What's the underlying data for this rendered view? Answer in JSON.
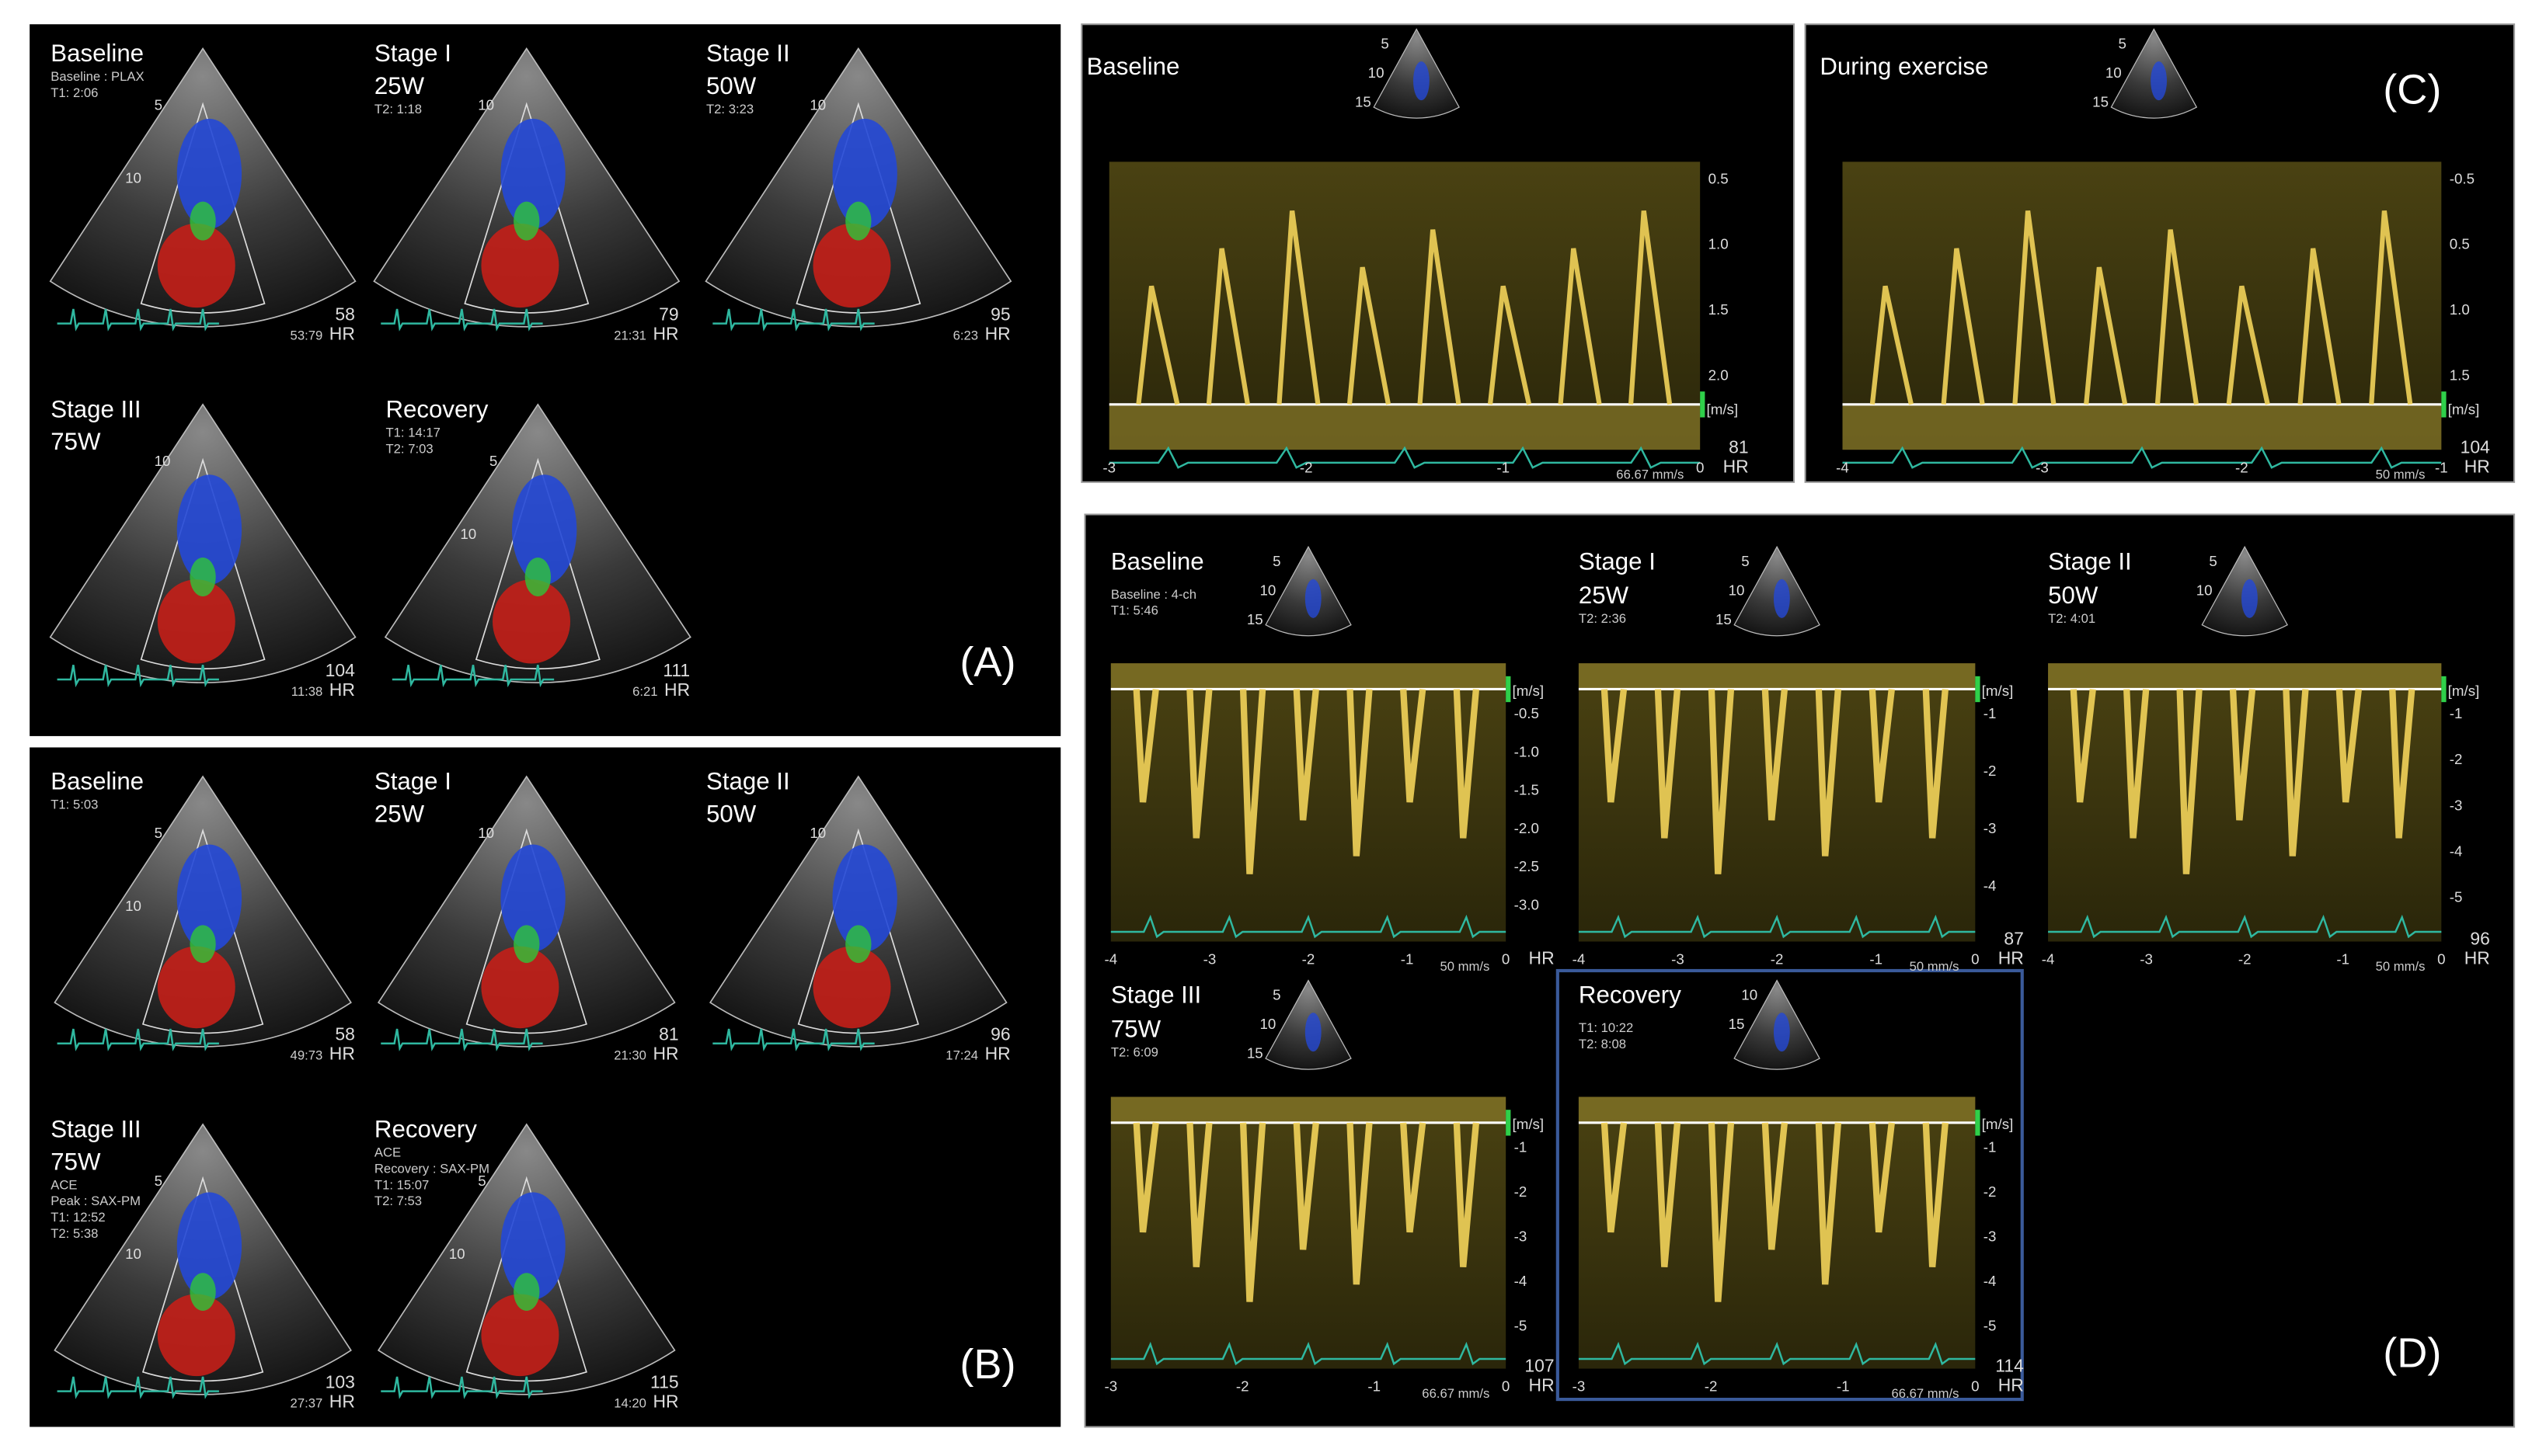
{
  "panel_a": {
    "letter": "(A)",
    "hr_unit": "HR",
    "views": [
      {
        "title": "Baseline",
        "notes": [
          "Baseline : PLAX",
          "T1: 2:06"
        ],
        "depth": [
          "5",
          "10"
        ],
        "hr": "58",
        "time": "53:79"
      },
      {
        "title": "Stage I",
        "subtitle": "25W",
        "notes": [
          "T2: 1:18"
        ],
        "depth": [
          "10"
        ],
        "hr": "79",
        "time": "21:31"
      },
      {
        "title": "Stage II",
        "subtitle": "50W",
        "notes": [
          "T2: 3:23"
        ],
        "depth": [
          "10"
        ],
        "hr": "95",
        "time": "6:23"
      },
      {
        "title": "Stage III",
        "subtitle": "75W",
        "notes": [],
        "depth": [
          "10"
        ],
        "hr": "104",
        "time": "11:38"
      },
      {
        "title": "Recovery",
        "notes": [
          "T1: 14:17",
          "T2: 7:03"
        ],
        "depth": [
          "5",
          "10"
        ],
        "hr": "111",
        "time": "6:21"
      }
    ]
  },
  "panel_b": {
    "letter": "(B)",
    "hr_unit": "HR",
    "views": [
      {
        "title": "Baseline",
        "notes": [
          "T1: 5:03"
        ],
        "depth": [
          "5",
          "10"
        ],
        "hr": "58",
        "time": "49:73"
      },
      {
        "title": "Stage I",
        "subtitle": "25W",
        "notes": [],
        "depth": [
          "10"
        ],
        "hr": "81",
        "time": "21:30"
      },
      {
        "title": "Stage II",
        "subtitle": "50W",
        "notes": [],
        "depth": [
          "10"
        ],
        "hr": "96",
        "time": "17:24"
      },
      {
        "title": "Stage III",
        "subtitle": "75W",
        "notes": [
          "ACE",
          "Peak : SAX-PM",
          "T1: 12:52",
          "T2: 5:38"
        ],
        "depth": [
          "5",
          "10"
        ],
        "hr": "103",
        "time": "27:37"
      },
      {
        "title": "Recovery",
        "notes": [
          "ACE",
          "Recovery : SAX-PM",
          "T1: 15:07",
          "T2: 7:53"
        ],
        "depth": [
          "5",
          "10"
        ],
        "hr": "115",
        "time": "14:20"
      }
    ]
  },
  "panel_c": {
    "letter": "(C)",
    "hr_unit": "HR",
    "unit": "[m/s]",
    "views": [
      {
        "title": "Baseline",
        "depth": [
          "5",
          "10",
          "15"
        ],
        "yticks": [
          "2.0",
          "1.5",
          "1.0",
          "0.5"
        ],
        "xticks": [
          "-3",
          "-2",
          "-1",
          "0"
        ],
        "speed": "66.67 mm/s",
        "hr": "81"
      },
      {
        "title": "During exercise",
        "depth": [
          "5",
          "10",
          "15"
        ],
        "yticks": [
          "1.5",
          "1.0",
          "0.5",
          "-0.5"
        ],
        "xticks": [
          "-4",
          "-3",
          "-2",
          "-1"
        ],
        "speed": "50 mm/s",
        "hr": "104"
      }
    ]
  },
  "panel_d": {
    "letter": "(D)",
    "hr_unit": "HR",
    "unit": "[m/s]",
    "views": [
      {
        "title": "Baseline",
        "notes": [
          "Baseline : 4-ch",
          "T1: 5:46"
        ],
        "depth": [
          "5",
          "10",
          "15"
        ],
        "yticks": [
          "-0.5",
          "-1.0",
          "-1.5",
          "-2.0",
          "-2.5",
          "-3.0"
        ],
        "xticks": [
          "-4",
          "-3",
          "-2",
          "-1",
          "0"
        ],
        "speed": "50 mm/s"
      },
      {
        "title": "Stage I",
        "subtitle": "25W",
        "notes": [
          "T2: 2:36"
        ],
        "depth": [
          "5",
          "10",
          "15"
        ],
        "yticks": [
          "-1",
          "-2",
          "-3",
          "-4"
        ],
        "xticks": [
          "-4",
          "-3",
          "-2",
          "-1",
          "0"
        ],
        "speed": "50 mm/s",
        "hr": "87"
      },
      {
        "title": "Stage II",
        "subtitle": "50W",
        "notes": [
          "T2: 4:01"
        ],
        "depth": [
          "5",
          "10"
        ],
        "yticks": [
          "-1",
          "-2",
          "-3",
          "-4",
          "-5"
        ],
        "xticks": [
          "-4",
          "-3",
          "-2",
          "-1",
          "0"
        ],
        "speed": "50 mm/s",
        "hr": "96"
      },
      {
        "title": "Stage III",
        "subtitle": "75W",
        "notes": [
          "T2: 6:09"
        ],
        "depth": [
          "5",
          "10",
          "15"
        ],
        "yticks": [
          "-1",
          "-2",
          "-3",
          "-4",
          "-5"
        ],
        "xticks": [
          "-3",
          "-2",
          "-1",
          "0"
        ],
        "speed": "66.67 mm/s",
        "hr": "107"
      },
      {
        "title": "Recovery",
        "notes": [
          "T1: 10:22",
          "T2: 8:08"
        ],
        "depth": [
          "10",
          "15"
        ],
        "yticks": [
          "-1",
          "-2",
          "-3",
          "-4",
          "-5"
        ],
        "xticks": [
          "-3",
          "-2",
          "-1",
          "0"
        ],
        "speed": "66.67 mm/s",
        "hr": "114"
      }
    ]
  }
}
